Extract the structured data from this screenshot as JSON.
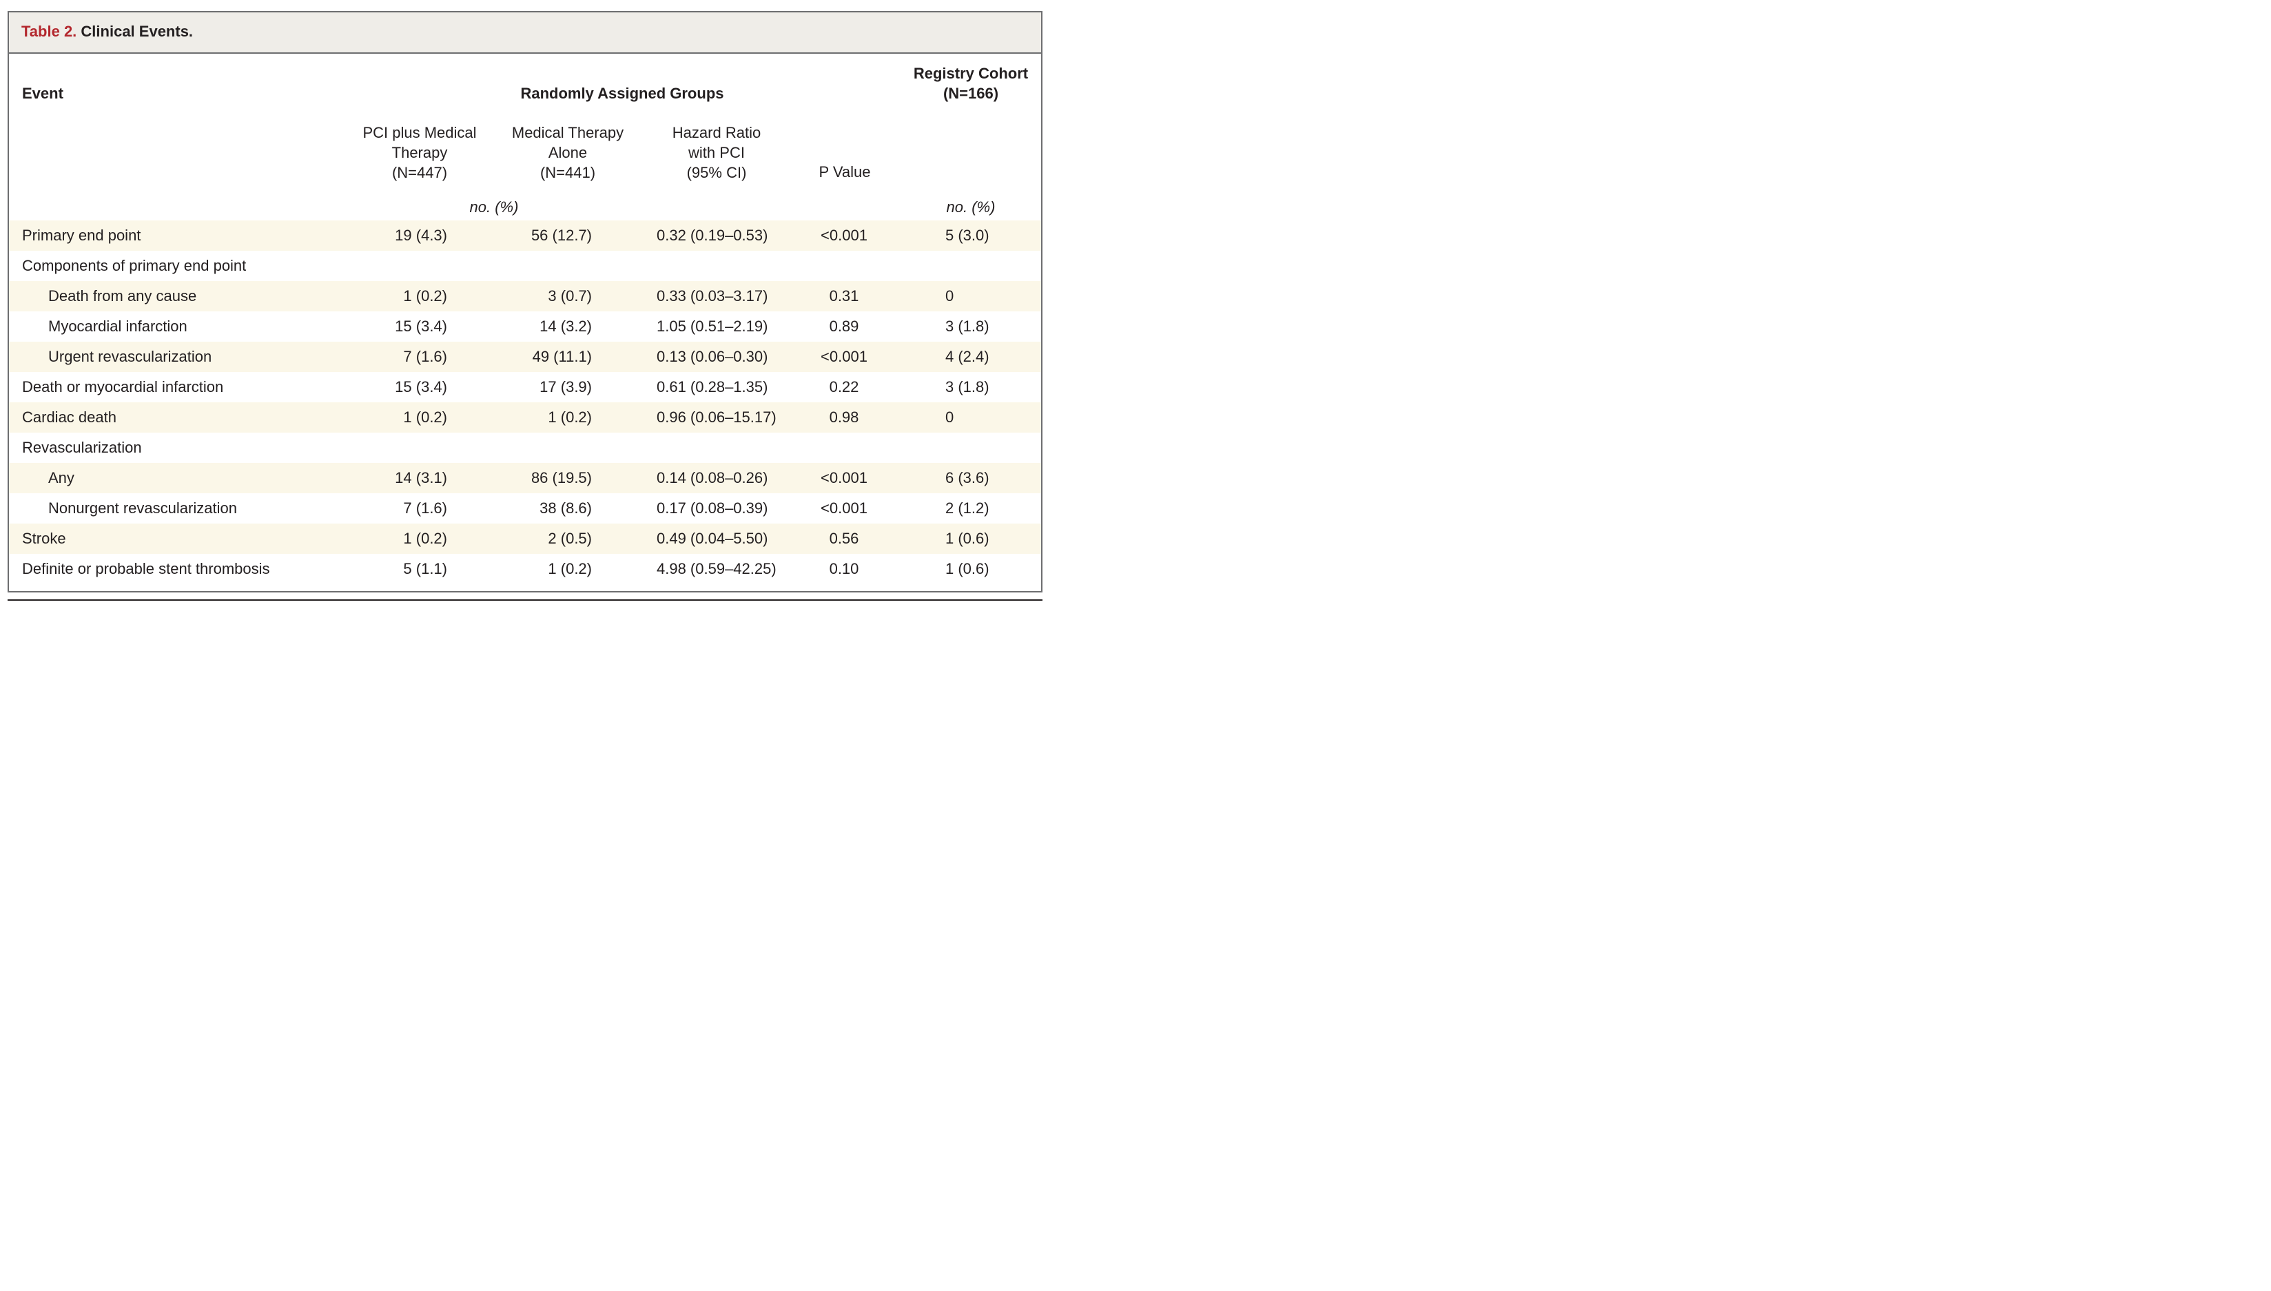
{
  "table_label": "Table 2.",
  "table_title": "Clinical Events.",
  "headers": {
    "event": "Event",
    "random_groups": "Randomly Assigned Groups",
    "registry": [
      "Registry Cohort",
      "(N=166)"
    ],
    "pci": [
      "PCI plus Medical",
      "Therapy",
      "(N=447)"
    ],
    "medical": [
      "Medical Therapy",
      "Alone",
      "(N=441)"
    ],
    "hazard": [
      "Hazard Ratio",
      "with PCI",
      "(95% CI)"
    ],
    "pvalue": "P Value",
    "unit_random": "no. (%)",
    "unit_registry": "no. (%)"
  },
  "rows": [
    {
      "label": "Primary end point",
      "pci": "19 (4.3)",
      "med": "56 (12.7)",
      "hr": "0.32 (0.19–0.53)",
      "p": "<0.001",
      "reg": "5 (3.0)"
    },
    {
      "label": "Components of primary end point",
      "pci": "",
      "med": "",
      "hr": "",
      "p": "",
      "reg": ""
    },
    {
      "label": "Death from any cause",
      "pci": "1 (0.2)",
      "med": "3 (0.7)",
      "hr": "0.33 (0.03–3.17)",
      "p": "0.31",
      "reg": "0"
    },
    {
      "label": "Myocardial infarction",
      "pci": "15 (3.4)",
      "med": "14 (3.2)",
      "hr": "1.05 (0.51–2.19)",
      "p": "0.89",
      "reg": "3 (1.8)"
    },
    {
      "label": "Urgent revascularization",
      "pci": "7 (1.6)",
      "med": "49 (11.1)",
      "hr": "0.13 (0.06–0.30)",
      "p": "<0.001",
      "reg": "4 (2.4)"
    },
    {
      "label": "Death or myocardial infarction",
      "pci": "15 (3.4)",
      "med": "17 (3.9)",
      "hr": "0.61 (0.28–1.35)",
      "p": "0.22",
      "reg": "3 (1.8)"
    },
    {
      "label": "Cardiac death",
      "pci": "1 (0.2)",
      "med": "1 (0.2)",
      "hr": "0.96 (0.06–15.17)",
      "p": "0.98",
      "reg": "0"
    },
    {
      "label": "Revascularization",
      "pci": "",
      "med": "",
      "hr": "",
      "p": "",
      "reg": ""
    },
    {
      "label": "Any",
      "pci": "14 (3.1)",
      "med": "86 (19.5)",
      "hr": "0.14 (0.08–0.26)",
      "p": "<0.001",
      "reg": "6 (3.6)"
    },
    {
      "label": "Nonurgent revascularization",
      "pci": "7 (1.6)",
      "med": "38 (8.6)",
      "hr": "0.17 (0.08–0.39)",
      "p": "<0.001",
      "reg": "2 (1.2)"
    },
    {
      "label": "Stroke",
      "pci": "1 (0.2)",
      "med": "2 (0.5)",
      "hr": "0.49 (0.04–5.50)",
      "p": "0.56",
      "reg": "1 (0.6)"
    },
    {
      "label": "Definite or probable stent thrombosis",
      "pci": "5 (1.1)",
      "med": "1 (0.2)",
      "hr": "4.98 (0.59–42.25)",
      "p": "0.10",
      "reg": "1 (0.6)"
    }
  ],
  "colors": {
    "label_red": "#b3272d",
    "title_bar": "#efede8",
    "row_shade": "#fbf7e8",
    "border": "#6d6e70"
  }
}
